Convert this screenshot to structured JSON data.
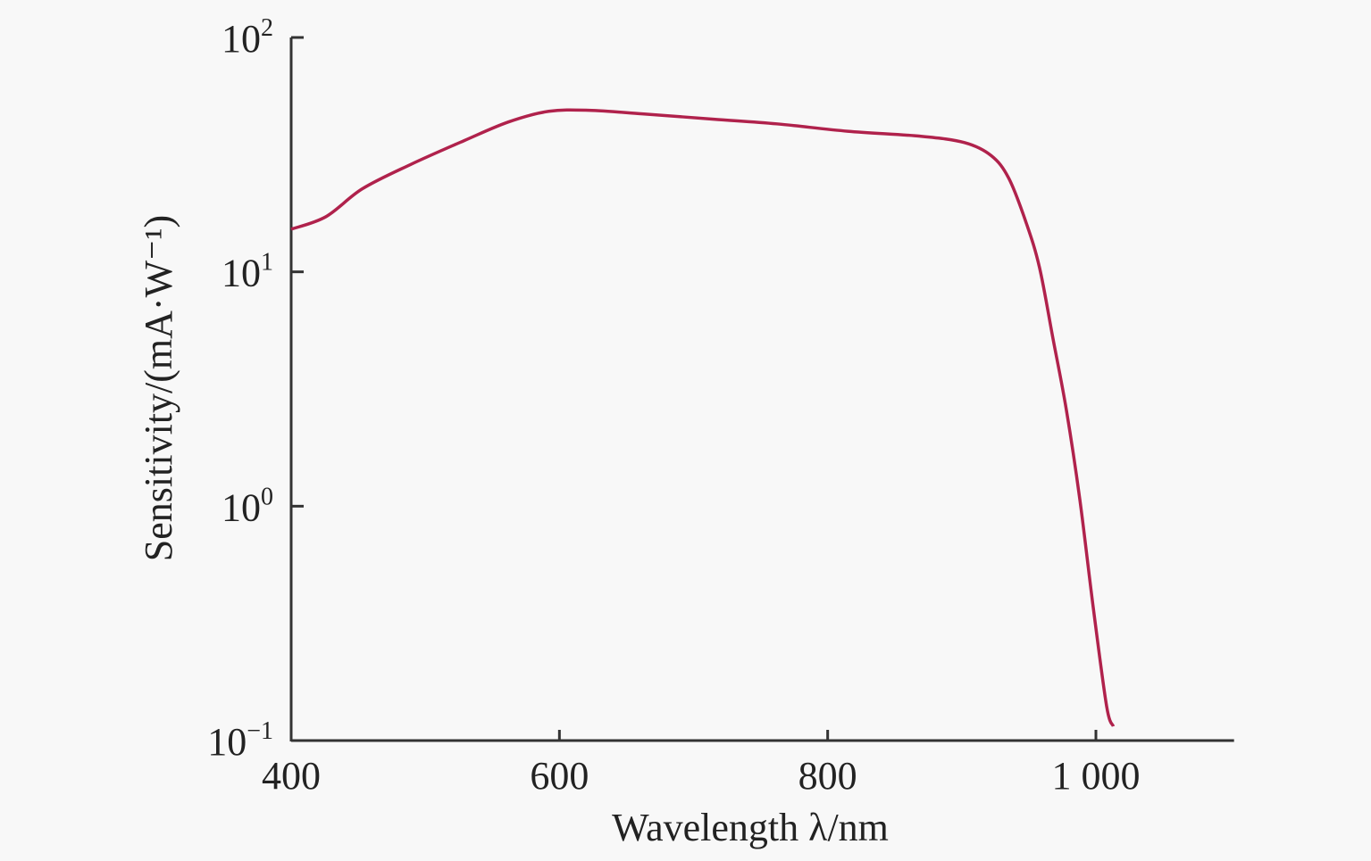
{
  "chart_data": {
    "type": "line",
    "title": "",
    "xlabel": "Wavelength λ/nm",
    "ylabel": "Sensitivity/(mA·W⁻¹)",
    "xscale": "linear",
    "yscale": "log",
    "xlim": [
      400,
      1103
    ],
    "ylim": [
      0.1,
      100
    ],
    "xticks": [
      400,
      600,
      800,
      1000
    ],
    "xtick_labels": [
      "400",
      "600",
      "800",
      "1 000"
    ],
    "yticks": [
      0.1,
      1,
      10,
      100
    ],
    "ytick_labels": [
      {
        "base": "10",
        "exp": "−1"
      },
      {
        "base": "10",
        "exp": "0"
      },
      {
        "base": "10",
        "exp": "1"
      },
      {
        "base": "10",
        "exp": "2"
      }
    ],
    "grid": false,
    "legend": null,
    "series": [
      {
        "name": "Sensitivity",
        "color": "#b0224c",
        "x": [
          400,
          426,
          453,
          489,
          529,
          562,
          592,
          622,
          662,
          715,
          762,
          815,
          869,
          902,
          922,
          935,
          948,
          958,
          968,
          978,
          988,
          998,
          1008,
          1013
        ],
        "y": [
          15.2,
          17.2,
          22.6,
          28.7,
          36.3,
          43.6,
          48.4,
          48.9,
          47.2,
          44.8,
          42.8,
          39.8,
          37.9,
          35.6,
          31.3,
          25.1,
          16.2,
          10.4,
          5.19,
          2.57,
          1.07,
          0.37,
          0.14,
          0.115
        ]
      }
    ]
  }
}
